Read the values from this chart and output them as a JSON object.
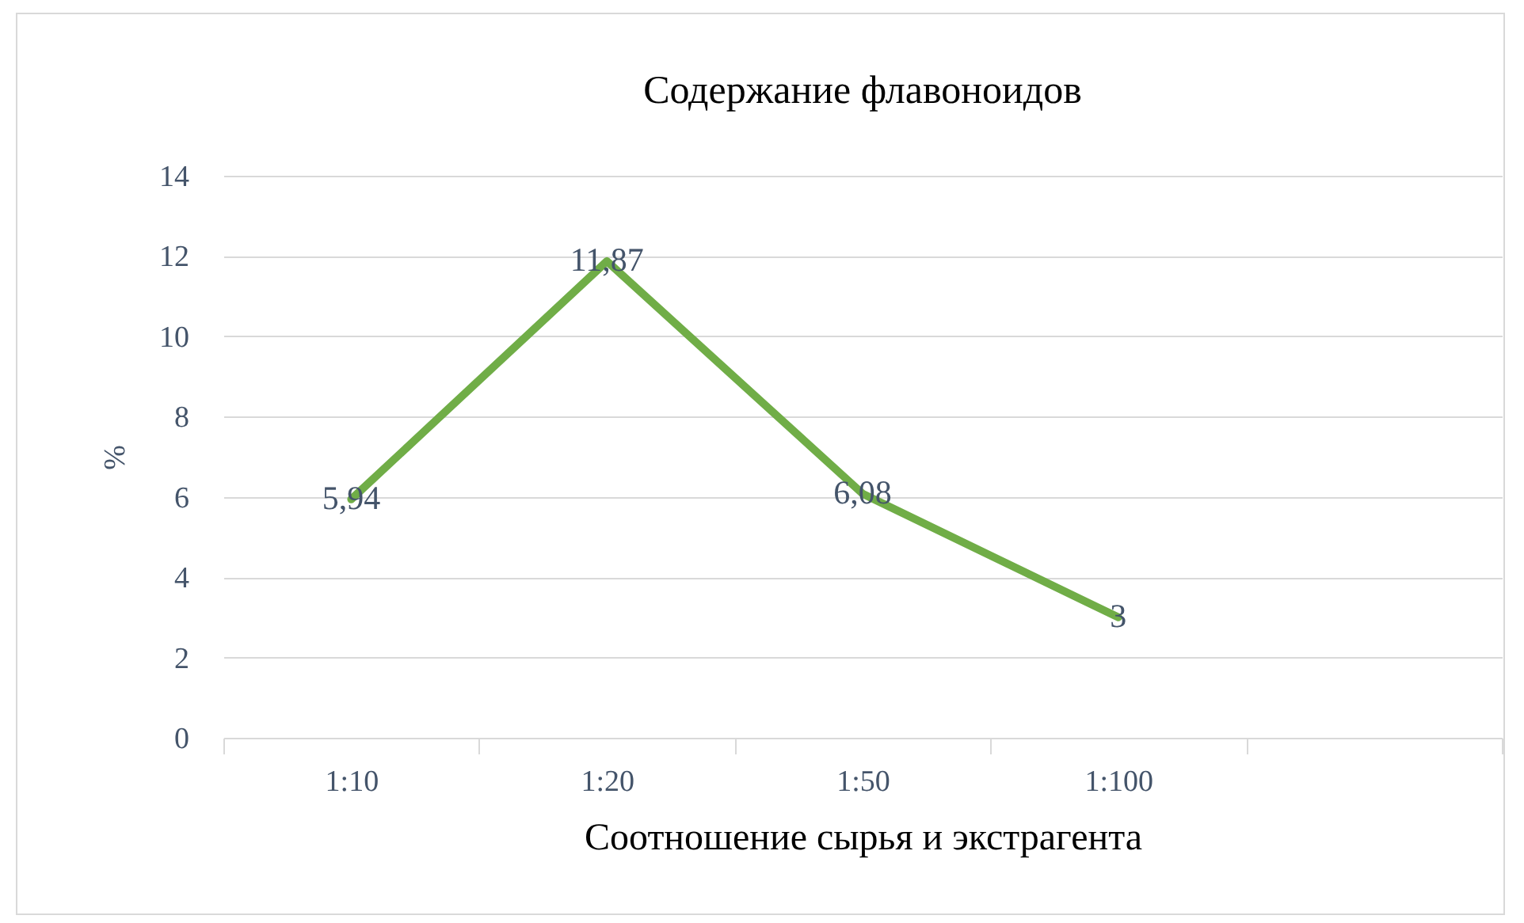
{
  "chart_data": {
    "type": "line",
    "title": "Содержание флавоноидов",
    "xlabel": "Соотношение сырья и экстрагента",
    "ylabel": "%",
    "categories": [
      "1:10",
      "1:20",
      "1:50",
      "1:100",
      null
    ],
    "series": [
      {
        "color": "#70ad47",
        "values": [
          5.94,
          11.87,
          6.08,
          3,
          null
        ],
        "value_labels": [
          "5,94",
          "11,87",
          "6,08",
          "3",
          null
        ]
      }
    ],
    "ylim": [
      0,
      14
    ],
    "yticks": [
      0,
      2,
      4,
      6,
      8,
      10,
      12,
      14
    ],
    "grid": "y",
    "marker": "none",
    "line_style": "solid"
  }
}
